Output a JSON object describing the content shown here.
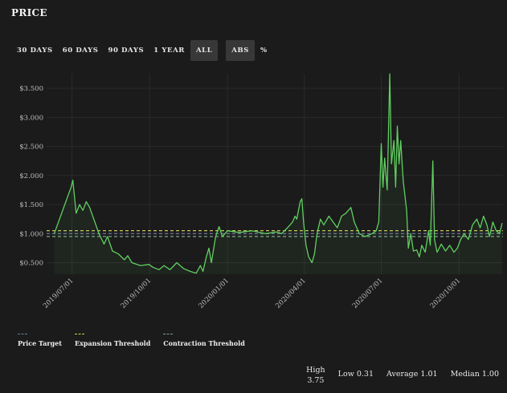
{
  "header": {
    "title": "PRICE"
  },
  "range_buttons": [
    {
      "label": "30 DAYS",
      "active": false
    },
    {
      "label": "60 DAYS",
      "active": false
    },
    {
      "label": "90 DAYS",
      "active": false
    },
    {
      "label": "1 YEAR",
      "active": false
    },
    {
      "label": "ALL",
      "active": true
    }
  ],
  "mode_buttons": [
    {
      "label": "ABS",
      "active": true
    },
    {
      "label": "%",
      "active": false
    }
  ],
  "legend": [
    {
      "label": "Price Target",
      "color": "#6f78a8"
    },
    {
      "label": "Expansion Threshold",
      "color": "#c9c95a"
    },
    {
      "label": "Contraction Threshold",
      "color": "#7fa58a"
    }
  ],
  "stats": {
    "high_label": "High",
    "high_value": "3.75",
    "low": "Low 0.31",
    "average": "Average 1.01",
    "median": "Median 1.00"
  },
  "chart_data": {
    "type": "line",
    "xlabel": "",
    "ylabel": "",
    "line_color": "#5fcf5f",
    "ylim": [
      0.3,
      3.75
    ],
    "y_ticks": [
      0.5,
      1.0,
      1.5,
      2.0,
      2.5,
      3.0,
      3.5
    ],
    "y_tick_labels": [
      "$0.500",
      "$1.000",
      "$1.500",
      "$2.000",
      "$2.500",
      "$3.000",
      "$3.500"
    ],
    "x_tick_labels": [
      {
        "date": "2019-07-01",
        "label": "2019/07/01"
      },
      {
        "date": "2019-10-01",
        "label": "2019/10/01"
      },
      {
        "date": "2020-01-01",
        "label": "2020/01/01"
      },
      {
        "date": "2020-04-01",
        "label": "2020/04/01"
      },
      {
        "date": "2020-07-01",
        "label": "2020/07/01"
      },
      {
        "date": "2020-10-01",
        "label": "2020/10/01"
      }
    ],
    "thresholds": [
      {
        "name": "Price Target",
        "value": 1.0,
        "color": "#6f78a8"
      },
      {
        "name": "Expansion Threshold",
        "value": 1.05,
        "color": "#c9c95a"
      },
      {
        "name": "Contraction Threshold",
        "value": 0.95,
        "color": "#7fa58a"
      }
    ],
    "series": [
      {
        "points": [
          [
            "2019-06-10",
            1.0
          ],
          [
            "2019-06-30",
            1.8
          ],
          [
            "2019-07-02",
            1.92
          ],
          [
            "2019-07-06",
            1.35
          ],
          [
            "2019-07-10",
            1.5
          ],
          [
            "2019-07-14",
            1.4
          ],
          [
            "2019-07-18",
            1.55
          ],
          [
            "2019-07-22",
            1.45
          ],
          [
            "2019-07-28",
            1.2
          ],
          [
            "2019-08-02",
            1.0
          ],
          [
            "2019-08-08",
            0.82
          ],
          [
            "2019-08-12",
            0.95
          ],
          [
            "2019-08-18",
            0.7
          ],
          [
            "2019-08-25",
            0.65
          ],
          [
            "2019-09-01",
            0.55
          ],
          [
            "2019-09-05",
            0.62
          ],
          [
            "2019-09-10",
            0.5
          ],
          [
            "2019-09-20",
            0.45
          ],
          [
            "2019-09-30",
            0.47
          ],
          [
            "2019-10-05",
            0.42
          ],
          [
            "2019-10-12",
            0.38
          ],
          [
            "2019-10-18",
            0.45
          ],
          [
            "2019-10-25",
            0.38
          ],
          [
            "2019-11-02",
            0.5
          ],
          [
            "2019-11-10",
            0.4
          ],
          [
            "2019-11-18",
            0.35
          ],
          [
            "2019-11-25",
            0.32
          ],
          [
            "2019-11-30",
            0.45
          ],
          [
            "2019-12-03",
            0.35
          ],
          [
            "2019-12-07",
            0.6
          ],
          [
            "2019-12-10",
            0.75
          ],
          [
            "2019-12-13",
            0.5
          ],
          [
            "2019-12-18",
            0.95
          ],
          [
            "2019-12-22",
            1.12
          ],
          [
            "2019-12-26",
            0.95
          ],
          [
            "2020-01-01",
            1.05
          ],
          [
            "2020-01-15",
            1.02
          ],
          [
            "2020-01-30",
            1.05
          ],
          [
            "2020-02-15",
            1.0
          ],
          [
            "2020-02-28",
            1.03
          ],
          [
            "2020-03-05",
            1.0
          ],
          [
            "2020-03-12",
            1.1
          ],
          [
            "2020-03-18",
            1.2
          ],
          [
            "2020-03-21",
            1.3
          ],
          [
            "2020-03-23",
            1.25
          ],
          [
            "2020-03-25",
            1.4
          ],
          [
            "2020-03-27",
            1.55
          ],
          [
            "2020-03-29",
            1.6
          ],
          [
            "2020-03-31",
            1.2
          ],
          [
            "2020-04-03",
            0.8
          ],
          [
            "2020-04-06",
            0.6
          ],
          [
            "2020-04-10",
            0.5
          ],
          [
            "2020-04-13",
            0.65
          ],
          [
            "2020-04-16",
            1.0
          ],
          [
            "2020-04-20",
            1.25
          ],
          [
            "2020-04-24",
            1.15
          ],
          [
            "2020-04-30",
            1.3
          ],
          [
            "2020-05-05",
            1.2
          ],
          [
            "2020-05-10",
            1.1
          ],
          [
            "2020-05-15",
            1.3
          ],
          [
            "2020-05-20",
            1.35
          ],
          [
            "2020-05-26",
            1.45
          ],
          [
            "2020-05-30",
            1.2
          ],
          [
            "2020-06-05",
            1.0
          ],
          [
            "2020-06-12",
            0.95
          ],
          [
            "2020-06-20",
            1.0
          ],
          [
            "2020-06-25",
            1.05
          ],
          [
            "2020-06-28",
            1.2
          ],
          [
            "2020-07-01",
            2.55
          ],
          [
            "2020-07-03",
            1.8
          ],
          [
            "2020-07-05",
            2.3
          ],
          [
            "2020-07-08",
            1.75
          ],
          [
            "2020-07-11",
            3.75
          ],
          [
            "2020-07-13",
            2.2
          ],
          [
            "2020-07-16",
            2.6
          ],
          [
            "2020-07-18",
            1.8
          ],
          [
            "2020-07-20",
            2.85
          ],
          [
            "2020-07-22",
            2.2
          ],
          [
            "2020-07-24",
            2.6
          ],
          [
            "2020-07-27",
            1.9
          ],
          [
            "2020-07-31",
            1.4
          ],
          [
            "2020-08-02",
            0.75
          ],
          [
            "2020-08-05",
            1.0
          ],
          [
            "2020-08-08",
            0.7
          ],
          [
            "2020-08-12",
            0.72
          ],
          [
            "2020-08-15",
            0.6
          ],
          [
            "2020-08-18",
            0.8
          ],
          [
            "2020-08-22",
            0.68
          ],
          [
            "2020-08-26",
            1.05
          ],
          [
            "2020-08-28",
            0.8
          ],
          [
            "2020-08-31",
            2.25
          ],
          [
            "2020-09-02",
            0.9
          ],
          [
            "2020-09-05",
            0.68
          ],
          [
            "2020-09-10",
            0.82
          ],
          [
            "2020-09-15",
            0.7
          ],
          [
            "2020-09-20",
            0.8
          ],
          [
            "2020-09-25",
            0.68
          ],
          [
            "2020-09-29",
            0.75
          ],
          [
            "2020-10-03",
            0.9
          ],
          [
            "2020-10-07",
            1.0
          ],
          [
            "2020-10-12",
            0.9
          ],
          [
            "2020-10-17",
            1.15
          ],
          [
            "2020-10-22",
            1.25
          ],
          [
            "2020-10-26",
            1.1
          ],
          [
            "2020-10-30",
            1.3
          ],
          [
            "2020-11-03",
            1.15
          ],
          [
            "2020-11-06",
            0.95
          ],
          [
            "2020-11-10",
            1.2
          ],
          [
            "2020-11-14",
            1.05
          ],
          [
            "2020-11-18",
            1.0
          ],
          [
            "2020-11-21",
            1.18
          ]
        ]
      }
    ]
  }
}
